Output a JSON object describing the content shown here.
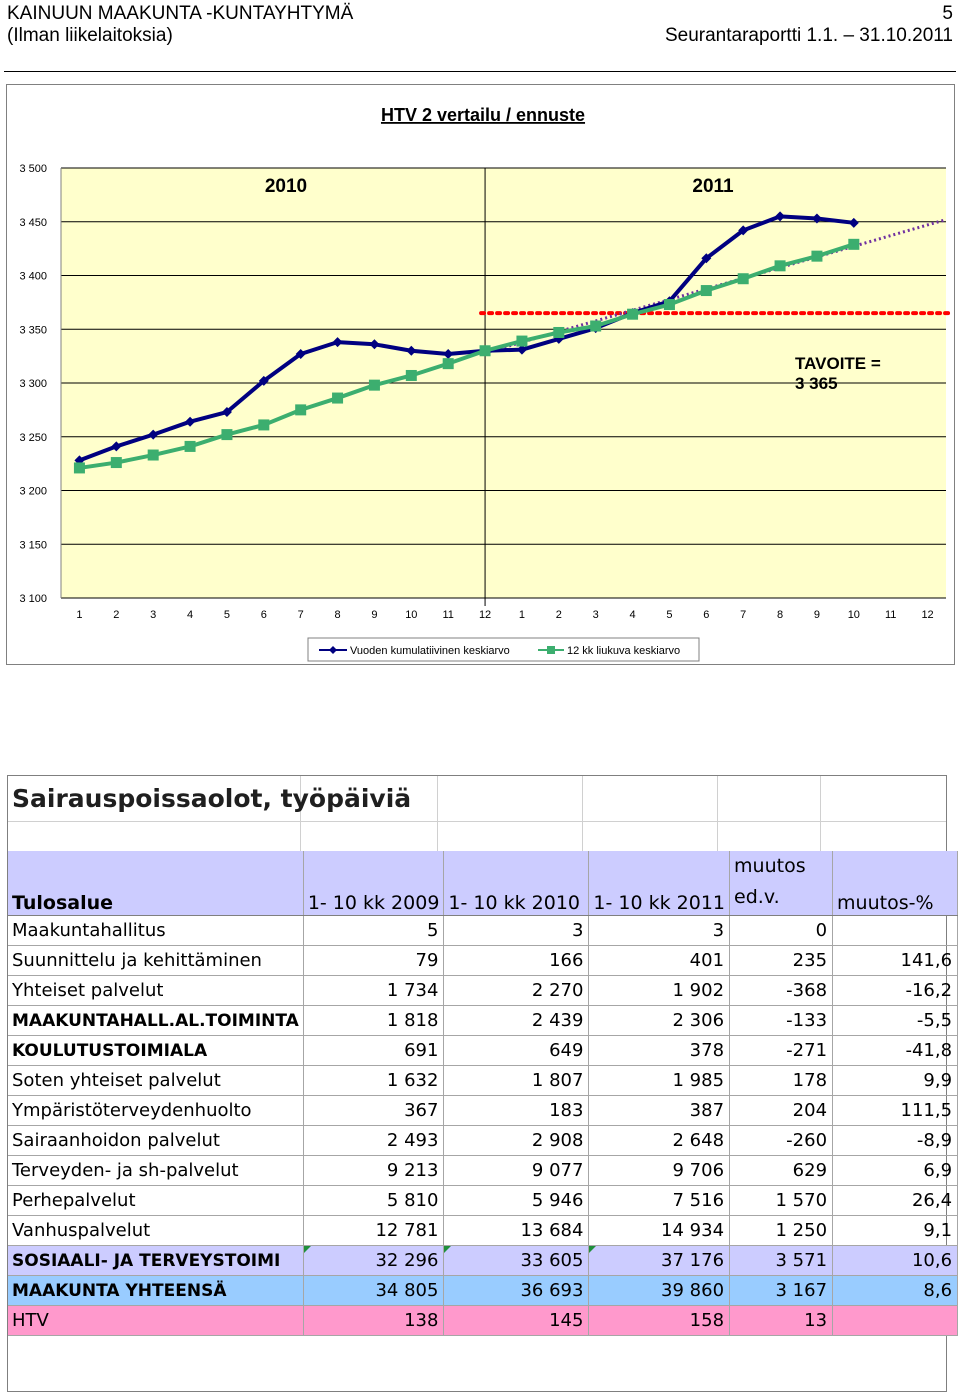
{
  "header": {
    "org": "KAINUUN MAAKUNTA -KUNTAYHTYMÄ",
    "subtitle": "(Ilman liikelaitoksia)",
    "page_number": "5",
    "report": "Seurantaraportti 1.1. – 31.10.2011"
  },
  "chart_data": {
    "type": "line",
    "title": "HTV 2 vertailu / ennuste",
    "categories": [
      "1",
      "2",
      "3",
      "4",
      "5",
      "6",
      "7",
      "8",
      "9",
      "10",
      "11",
      "12",
      "1",
      "2",
      "3",
      "4",
      "5",
      "6",
      "7",
      "8",
      "9",
      "10",
      "11",
      "12"
    ],
    "year_labels": [
      "2010",
      "2011"
    ],
    "ylim": [
      3100,
      3500
    ],
    "yticks": [
      3100,
      3150,
      3200,
      3250,
      3300,
      3350,
      3400,
      3450,
      3500
    ],
    "ytick_labels": [
      "3 100",
      "3 150",
      "3 200",
      "3 250",
      "3 300",
      "3 350",
      "3 400",
      "3 450",
      "3 500"
    ],
    "grid": true,
    "legend_position": "bottom",
    "series": [
      {
        "name": "Vuoden kumulatiivinen keskiarvo",
        "color": "#000080",
        "marker": "diamond",
        "values": [
          3228,
          3241,
          3252,
          3264,
          3273,
          3302,
          3327,
          3338,
          3336,
          3330,
          3327,
          3330,
          3331,
          3341,
          3351,
          3365,
          3376,
          3416,
          3442,
          3455,
          3453,
          3449,
          null,
          null
        ]
      },
      {
        "name": "12 kk liukuva keskiarvo",
        "color": "#3cae6f",
        "marker": "square",
        "values": [
          3221,
          3226,
          3233,
          3241,
          3252,
          3261,
          3275,
          3286,
          3298,
          3307,
          3318,
          3330,
          3339,
          3347,
          3353,
          3364,
          3373,
          3386,
          3397,
          3409,
          3418,
          3429,
          null,
          null
        ]
      }
    ],
    "trend_line": {
      "color": "#7030a0",
      "style": "dotted",
      "from_index": 11,
      "from_value": 3328,
      "to_index": 23.5,
      "to_value": 3452
    },
    "target_line": {
      "value": 3365,
      "color": "#ff0000",
      "style": "dotted",
      "from_index": 11
    },
    "annotation": {
      "line1": "TAVOITE =",
      "line2": "3 365"
    },
    "plot_background": "#ffffcc"
  },
  "table": {
    "title": "Sairauspoissaolot, työpäiviä",
    "headers": {
      "col0": "Tulosalue",
      "col1": "1- 10 kk 2009",
      "col2": "1- 10 kk 2010",
      "col3": "1- 10 kk 2011",
      "col4_line1": "muutos",
      "col4_line2": "ed.v.",
      "col5": "muutos-%"
    },
    "rows": [
      {
        "name": "Maakuntahallitus",
        "v2009": "5",
        "v2010": "3",
        "v2011": "3",
        "change": "0",
        "pct": ""
      },
      {
        "name": "Suunnittelu ja kehittäminen",
        "v2009": "79",
        "v2010": "166",
        "v2011": "401",
        "change": "235",
        "pct": "141,6"
      },
      {
        "name": "Yhteiset palvelut",
        "v2009": "1 734",
        "v2010": "2 270",
        "v2011": "1 902",
        "change": "-368",
        "pct": "-16,2"
      },
      {
        "name": "MAAKUNTAHALL.AL.TOIMINTA",
        "v2009": "1 818",
        "v2010": "2 439",
        "v2011": "2 306",
        "change": "-133",
        "pct": "-5,5"
      },
      {
        "name": "KOULUTUSTOIMIALA",
        "v2009": "691",
        "v2010": "649",
        "v2011": "378",
        "change": "-271",
        "pct": "-41,8"
      },
      {
        "name": "Soten yhteiset palvelut",
        "v2009": "1 632",
        "v2010": "1 807",
        "v2011": "1 985",
        "change": "178",
        "pct": "9,9"
      },
      {
        "name": "Ympäristöterveydenhuolto",
        "v2009": "367",
        "v2010": "183",
        "v2011": "387",
        "change": "204",
        "pct": "111,5"
      },
      {
        "name": "Sairaanhoidon palvelut",
        "v2009": "2 493",
        "v2010": "2 908",
        "v2011": "2 648",
        "change": "-260",
        "pct": "-8,9"
      },
      {
        "name": "Terveyden- ja sh-palvelut",
        "v2009": "9 213",
        "v2010": "9 077",
        "v2011": "9 706",
        "change": "629",
        "pct": "6,9"
      },
      {
        "name": "Perhepalvelut",
        "v2009": "5 810",
        "v2010": "5 946",
        "v2011": "7 516",
        "change": "1 570",
        "pct": "26,4"
      },
      {
        "name": "Vanhuspalvelut",
        "v2009": "12 781",
        "v2010": "13 684",
        "v2011": "14 934",
        "change": "1 250",
        "pct": "9,1"
      },
      {
        "name": "SOSIAALI- JA TERVEYSTOIMI",
        "v2009": "32 296",
        "v2010": "33 605",
        "v2011": "37 176",
        "change": "3 571",
        "pct": "10,6"
      },
      {
        "name": "MAAKUNTA YHTEENSÄ",
        "v2009": "34 805",
        "v2010": "36 693",
        "v2011": "39 860",
        "change": "3 167",
        "pct": "8,6"
      },
      {
        "name": "HTV",
        "v2009": "138",
        "v2010": "145",
        "v2011": "158",
        "change": "13",
        "pct": ""
      }
    ]
  }
}
